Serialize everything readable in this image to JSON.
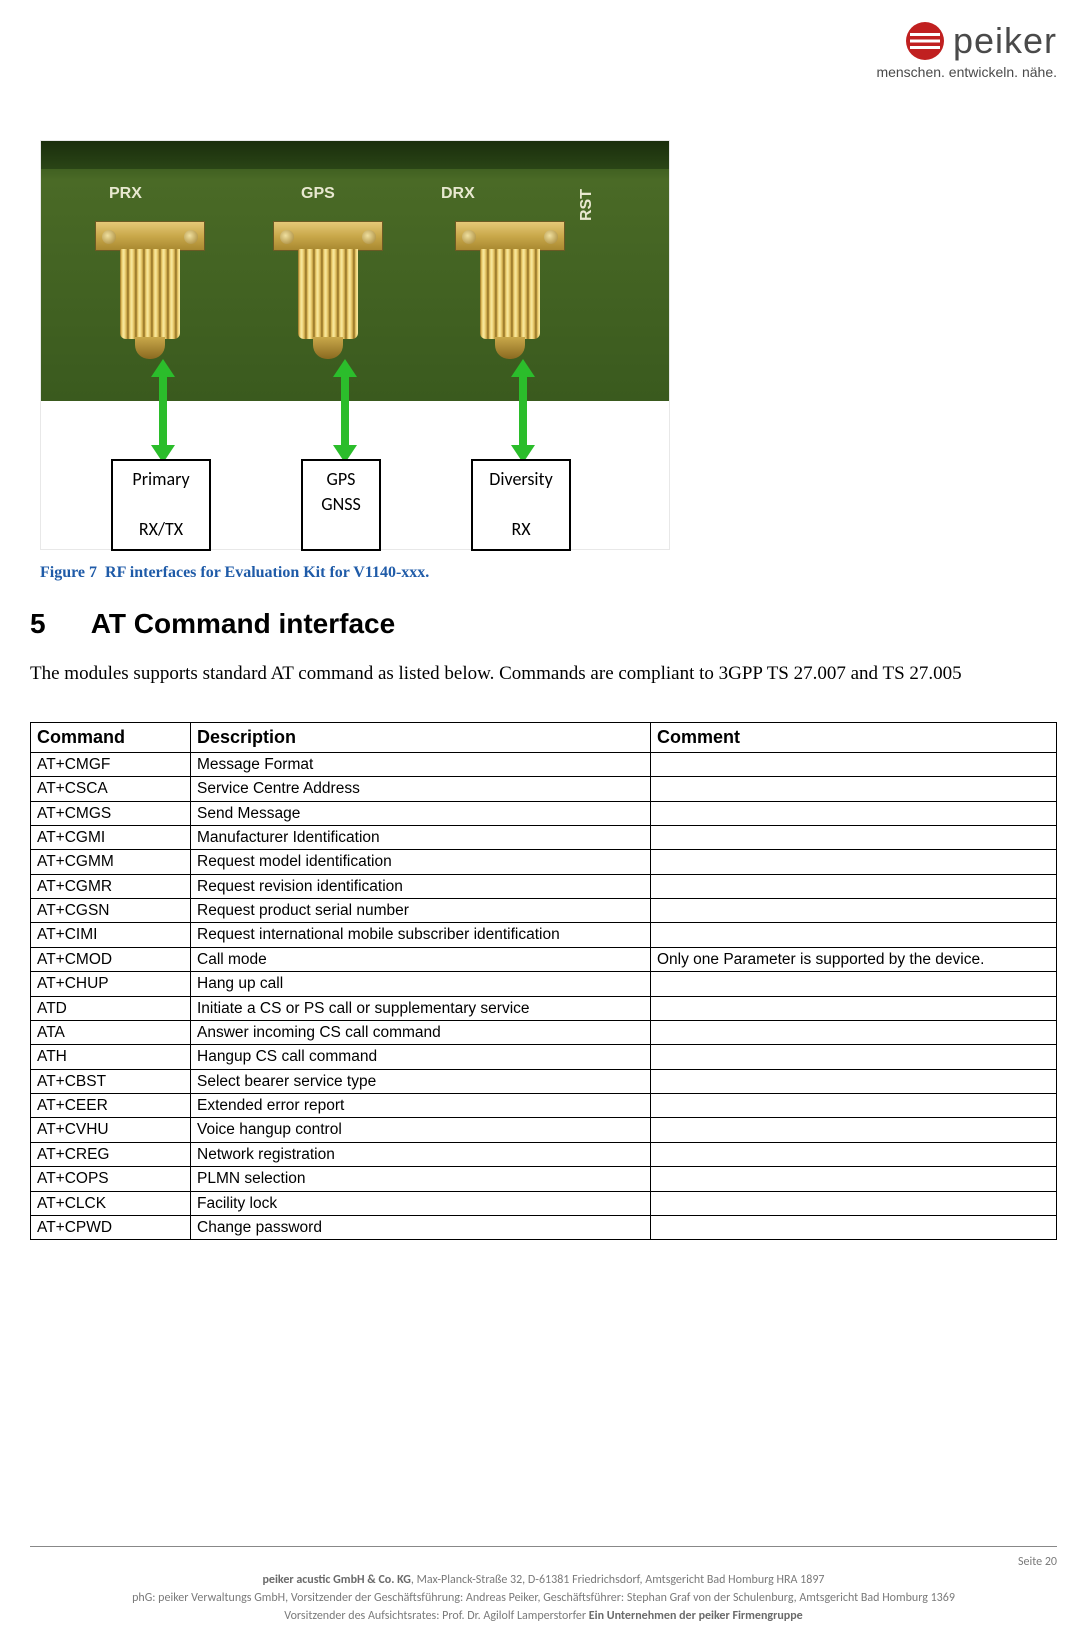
{
  "brand": {
    "name": "peiker",
    "tagline": "menschen. entwickeln. nähe.",
    "logo_color": "#c02020",
    "text_color": "#4a4a4a"
  },
  "figure": {
    "silkscreen": {
      "prx": "PRX",
      "gps": "GPS",
      "drx": "DRX",
      "rst": "RST"
    },
    "labels": {
      "primary_l1": "Primary",
      "primary_l2": "RX/TX",
      "gps_l1": "GPS",
      "gps_l2": "GNSS",
      "div_l1": "Diversity",
      "div_l2": "RX"
    },
    "caption_prefix": "Figure 7",
    "caption": "RF interfaces for Evaluation Kit for V1140-xxx.",
    "arrow_color": "#2bbd2b"
  },
  "section": {
    "number": "5",
    "title": "AT Command interface",
    "intro": "The modules supports standard AT command as listed below.  Commands are compliant to 3GPP TS 27.007 and TS 27.005"
  },
  "table": {
    "headers": {
      "command": "Command",
      "description": "Description",
      "comment": "Comment"
    },
    "rows": [
      {
        "cmd": "AT+CMGF",
        "desc": "Message Format",
        "comment": ""
      },
      {
        "cmd": "AT+CSCA",
        "desc": "Service Centre Address",
        "comment": ""
      },
      {
        "cmd": "AT+CMGS",
        "desc": "Send Message",
        "comment": ""
      },
      {
        "cmd": "AT+CGMI",
        "desc": "Manufacturer Identification",
        "comment": ""
      },
      {
        "cmd": "AT+CGMM",
        "desc": "Request model identification",
        "comment": ""
      },
      {
        "cmd": "AT+CGMR",
        "desc": "Request revision identification",
        "comment": ""
      },
      {
        "cmd": "AT+CGSN",
        "desc": "Request product serial number",
        "comment": ""
      },
      {
        "cmd": "AT+CIMI",
        "desc": "Request international mobile subscriber identification",
        "comment": ""
      },
      {
        "cmd": "AT+CMOD",
        "desc": "Call mode",
        "comment": "Only one Parameter is supported by the device."
      },
      {
        "cmd": "AT+CHUP",
        "desc": "Hang up call",
        "comment": ""
      },
      {
        "cmd": "ATD",
        "desc": "Initiate a CS or PS call or supplementary service",
        "comment": ""
      },
      {
        "cmd": "ATA",
        "desc": "Answer incoming CS call command",
        "comment": ""
      },
      {
        "cmd": "ATH",
        "desc": "Hangup CS call command",
        "comment": ""
      },
      {
        "cmd": "AT+CBST",
        "desc": "Select bearer service type",
        "comment": ""
      },
      {
        "cmd": "AT+CEER",
        "desc": "Extended error report",
        "comment": ""
      },
      {
        "cmd": "AT+CVHU",
        "desc": "Voice hangup control",
        "comment": ""
      },
      {
        "cmd": "AT+CREG",
        "desc": "Network registration",
        "comment": ""
      },
      {
        "cmd": "AT+COPS",
        "desc": "PLMN selection",
        "comment": ""
      },
      {
        "cmd": "AT+CLCK",
        "desc": "Facility lock",
        "comment": ""
      },
      {
        "cmd": "AT+CPWD",
        "desc": "Change password",
        "comment": ""
      }
    ]
  },
  "footer": {
    "page": "Seite 20",
    "line1_bold": "peiker acustic GmbH & Co. KG",
    "line1_rest": ", Max-Planck-Straße 32, D-61381 Friedrichsdorf, Amtsgericht Bad Homburg HRA 1897",
    "line2": "phG: peiker Verwaltungs GmbH, Vorsitzender der Geschäftsführung: Andreas Peiker, Geschäftsführer: Stephan Graf von der Schulenburg, Amtsgericht Bad Homburg 1369",
    "line3_a": "Vorsitzender des Aufsichtsrates: Prof. Dr. Agilolf Lamperstorfer  ",
    "line3_b": "Ein Unternehmen der peiker Firmengruppe"
  }
}
